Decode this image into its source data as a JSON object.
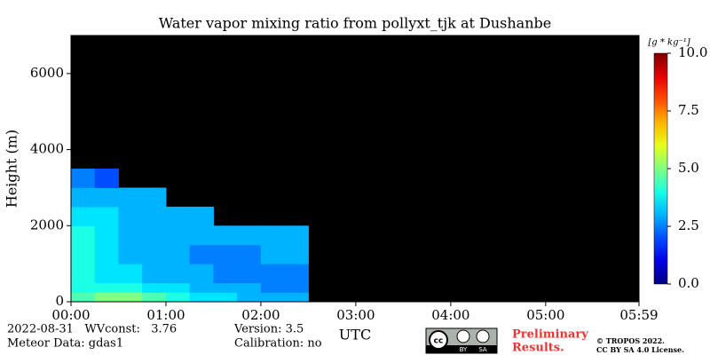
{
  "chart_data": {
    "type": "heatmap",
    "title": "Water vapor mixing ratio from pollyxt_tjk at Dushanbe",
    "y_label": "Height (m)",
    "x_label": "UTC",
    "xlim": [
      0,
      359
    ],
    "xticks": [
      {
        "value": 0,
        "label": "00:00"
      },
      {
        "value": 60,
        "label": "01:00"
      },
      {
        "value": 120,
        "label": "02:00"
      },
      {
        "value": 180,
        "label": "03:00"
      },
      {
        "value": 240,
        "label": "04:00"
      },
      {
        "value": 300,
        "label": "05:00"
      },
      {
        "value": 359,
        "label": "05:59"
      }
    ],
    "ylim": [
      0,
      7000
    ],
    "yticks": [
      0,
      2000,
      4000,
      6000
    ],
    "x_edges": [
      0,
      15,
      30,
      45,
      60,
      75,
      90,
      105,
      120,
      135,
      150
    ],
    "y_edges": [
      0,
      250,
      500,
      1000,
      1500,
      2000,
      2500,
      3000,
      3500
    ],
    "z": [
      [
        4.5,
        5,
        5,
        4.5,
        4,
        3.5,
        3.5,
        3,
        3,
        3
      ],
      [
        4,
        4,
        4,
        3.5,
        3.5,
        3,
        3,
        3,
        2.5,
        2.5
      ],
      [
        4,
        3.5,
        3.5,
        3,
        3,
        3,
        2.5,
        2.5,
        2.5,
        2.5
      ],
      [
        4,
        3.5,
        3,
        3,
        3,
        2.5,
        2.5,
        2.5,
        3,
        3
      ],
      [
        4,
        3.5,
        3,
        3,
        3,
        3,
        3,
        3,
        3,
        3
      ],
      [
        3.5,
        3.5,
        3,
        3,
        3,
        3,
        null,
        null,
        null,
        null
      ],
      [
        3,
        3,
        3,
        3,
        null,
        null,
        null,
        null,
        null,
        null
      ],
      [
        2.5,
        2,
        null,
        null,
        null,
        null,
        null,
        null,
        null,
        null
      ]
    ],
    "colormap": "jet",
    "no_data_color": "#000000",
    "clim": [
      0,
      10
    ],
    "cticks": [
      {
        "value": 0,
        "label": "0.0"
      },
      {
        "value": 2.5,
        "label": "2.5"
      },
      {
        "value": 5,
        "label": "5.0"
      },
      {
        "value": 7.5,
        "label": "7.5"
      },
      {
        "value": 10,
        "label": "10.0"
      }
    ],
    "colorbar_label": "[g * kg⁻¹]"
  },
  "footer": {
    "date_line": "2022-08-31   WVconst:   3.76",
    "meteor": "Meteor Data: gdas1",
    "version": "Version: 3.5",
    "calibration": "Calibration: no",
    "preliminary": "Preliminary",
    "results": "Results.",
    "copyright": "© TROPOS 2022.",
    "license": "CC BY SA 4.0 License.",
    "badge_by": "BY",
    "badge_sa": "SA"
  }
}
